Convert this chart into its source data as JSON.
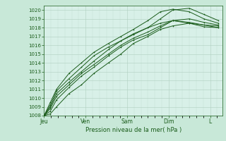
{
  "bg_color": "#c8e8d8",
  "plot_bg_color": "#d8f0e8",
  "grid_color_major": "#b0cfc0",
  "grid_color_minor": "#c0ddd0",
  "line_color": "#1a5c1a",
  "xlabel": "Pression niveau de la mer( hPa )",
  "ylim": [
    1008,
    1020.5
  ],
  "yticks": [
    1008,
    1009,
    1010,
    1011,
    1012,
    1013,
    1014,
    1015,
    1016,
    1017,
    1018,
    1019,
    1020
  ],
  "xtick_labels": [
    "Jeu",
    "Ven",
    "Sam",
    "Dim",
    "L"
  ],
  "xtick_positions": [
    0,
    1,
    2,
    3,
    4
  ],
  "xlim": [
    0,
    4.3
  ],
  "series": [
    [
      1008.0,
      1008.2,
      1009.0,
      1010.5,
      1011.5,
      1012.8,
      1014.0,
      1015.0,
      1016.2,
      1017.0,
      1017.8,
      1018.2,
      1018.5,
      1018.3,
      1018.2
    ],
    [
      1008.0,
      1008.5,
      1009.8,
      1011.2,
      1012.5,
      1013.5,
      1014.8,
      1015.8,
      1016.6,
      1017.2,
      1018.0,
      1018.8,
      1019.0,
      1018.6,
      1018.3
    ],
    [
      1008.0,
      1009.2,
      1010.8,
      1012.2,
      1013.5,
      1014.8,
      1015.8,
      1016.5,
      1017.2,
      1018.0,
      1019.0,
      1020.0,
      1020.2,
      1019.5,
      1018.8
    ],
    [
      1008.0,
      1009.5,
      1011.0,
      1012.8,
      1014.0,
      1015.2,
      1016.2,
      1017.0,
      1017.8,
      1018.8,
      1019.8,
      1020.1,
      1019.8,
      1019.0,
      1018.5
    ],
    [
      1008.0,
      1008.8,
      1010.2,
      1011.5,
      1012.8,
      1013.8,
      1015.0,
      1016.0,
      1016.8,
      1017.5,
      1018.2,
      1018.8,
      1018.6,
      1018.3,
      1018.0
    ],
    [
      1008.0,
      1009.0,
      1010.5,
      1011.8,
      1013.0,
      1014.2,
      1015.5,
      1016.5,
      1017.3,
      1018.0,
      1018.5,
      1018.8,
      1018.5,
      1018.1,
      1018.0
    ]
  ],
  "series_x": [
    0.0,
    0.15,
    0.3,
    0.6,
    0.9,
    1.2,
    1.55,
    1.85,
    2.15,
    2.5,
    2.8,
    3.1,
    3.5,
    3.85,
    4.2
  ]
}
